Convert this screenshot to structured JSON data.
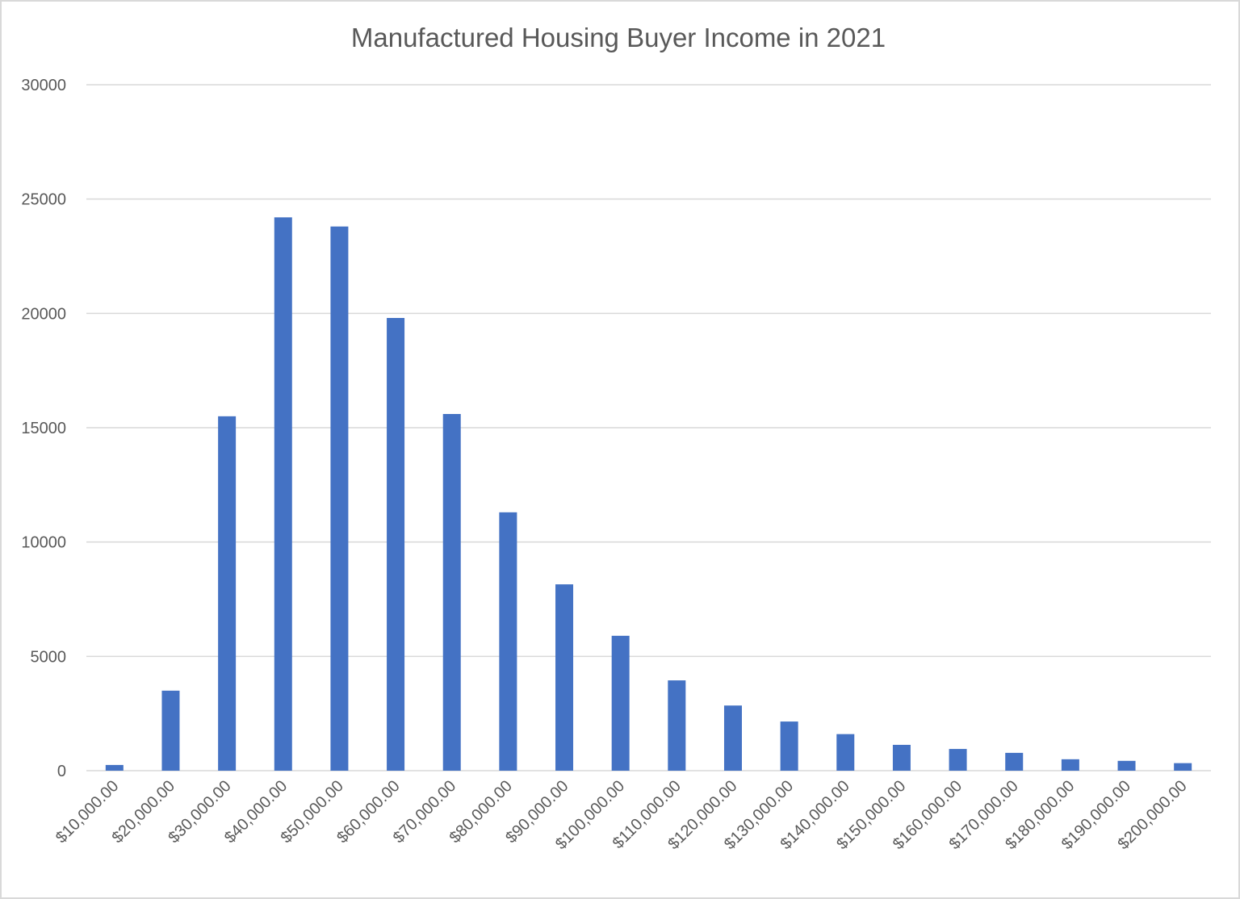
{
  "chart_data": {
    "type": "bar",
    "title": "Manufactured Housing Buyer Income in 2021",
    "xlabel": "",
    "ylabel": "",
    "ylim": [
      0,
      30000
    ],
    "yticks": [
      0,
      5000,
      10000,
      15000,
      20000,
      25000,
      30000
    ],
    "grid": true,
    "legend": "none",
    "bar_color": "#4472c4",
    "categories": [
      "$10,000.00",
      "$20,000.00",
      "$30,000.00",
      "$40,000.00",
      "$50,000.00",
      "$60,000.00",
      "$70,000.00",
      "$80,000.00",
      "$90,000.00",
      "$100,000.00",
      "$110,000.00",
      "$120,000.00",
      "$130,000.00",
      "$140,000.00",
      "$150,000.00",
      "$160,000.00",
      "$170,000.00",
      "$180,000.00",
      "$190,000.00",
      "$200,000.00"
    ],
    "values": [
      250,
      3500,
      15500,
      24200,
      23800,
      19800,
      15600,
      11300,
      8150,
      5900,
      3950,
      2850,
      2150,
      1600,
      1130,
      950,
      780,
      500,
      430,
      330
    ]
  }
}
